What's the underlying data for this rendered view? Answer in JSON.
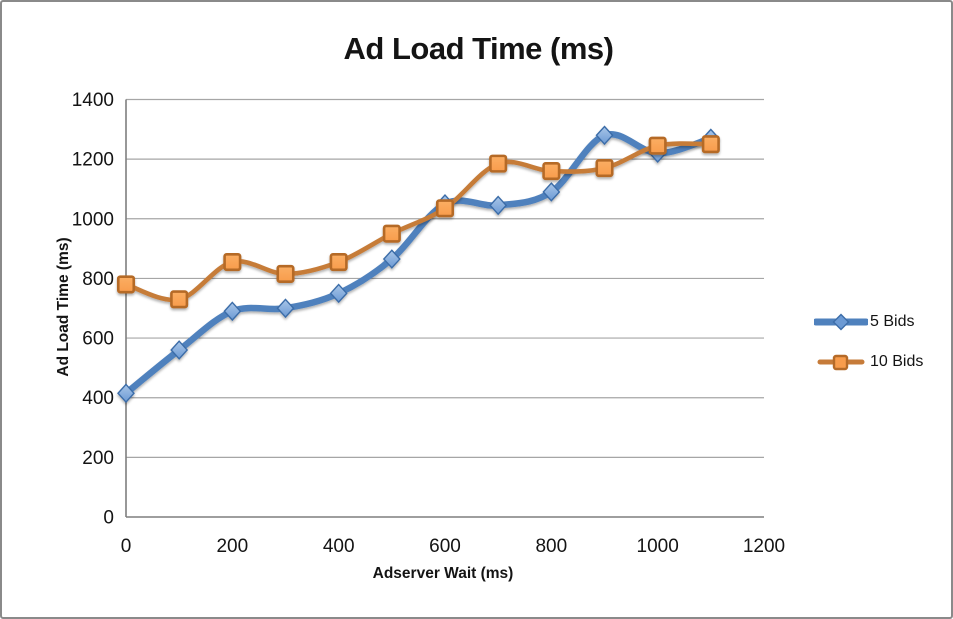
{
  "chart_data": {
    "type": "line",
    "title": "Ad Load Time (ms)",
    "xlabel": "Adserver Wait (ms)",
    "ylabel": "Ad Load Time (ms)",
    "xlim": [
      0,
      1200
    ],
    "ylim": [
      0,
      1400
    ],
    "xtick_step": 200,
    "ytick_step": 200,
    "grid": true,
    "legend_position": "right",
    "smoothed_lines": true,
    "x": [
      0,
      100,
      200,
      300,
      400,
      500,
      600,
      700,
      800,
      900,
      1000,
      1100
    ],
    "series": [
      {
        "name": "5 Bids",
        "marker": "diamond",
        "line_color": "#4F81BD",
        "marker_fill": "#6C9AD4",
        "marker_fill_light": "#A9C6E8",
        "marker_stroke": "#3B6CA8",
        "line_width": 6.5,
        "values": [
          415,
          560,
          690,
          700,
          750,
          865,
          1050,
          1045,
          1090,
          1280,
          1220,
          1270
        ]
      },
      {
        "name": "10 Bids",
        "marker": "square",
        "line_color": "#C67B39",
        "marker_fill": "#F89C4C",
        "marker_fill_light": "#FBAE63",
        "marker_stroke": "#B56A28",
        "line_width": 4.6,
        "values": [
          780,
          730,
          855,
          815,
          855,
          950,
          1035,
          1185,
          1160,
          1170,
          1245,
          1250
        ]
      }
    ]
  },
  "colors": {
    "background": "#FFFFFF",
    "frame_border": "#8A8A8A",
    "grid_line": "#A6A6A6",
    "axis_line": "#7F7F7F",
    "text": "#141414"
  }
}
